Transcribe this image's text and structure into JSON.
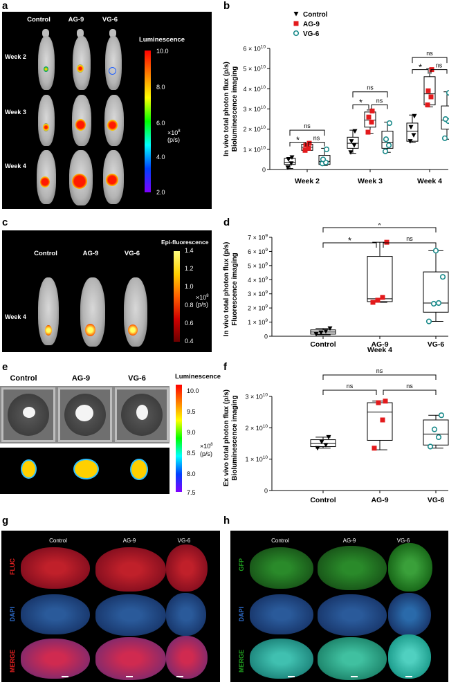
{
  "panel_letters": [
    "a",
    "b",
    "c",
    "d",
    "e",
    "f",
    "g",
    "h"
  ],
  "panel_a": {
    "columns": [
      "Control",
      "AG-9",
      "VG-6"
    ],
    "rows": [
      "Week 2",
      "Week 3",
      "Week 4"
    ],
    "colorbar_title": "Luminescence",
    "colorbar_ticks": [
      "10.0",
      "8.0",
      "6.0",
      "4.0",
      "2.0"
    ],
    "unit_line1": "×10",
    "unit_exp": "8",
    "unit_line2": "(p/s)"
  },
  "panel_c": {
    "columns": [
      "Control",
      "AG-9",
      "VG-6"
    ],
    "row": "Week 4",
    "colorbar_title": "Epi-fluorescence",
    "colorbar_ticks": [
      "1.4",
      "1.2",
      "1.0",
      "0.8",
      "0.6",
      "0.4"
    ],
    "unit_line1": "×10",
    "unit_exp": "8",
    "unit_line2": "(p/s)"
  },
  "panel_e": {
    "columns": [
      "Control",
      "AG-9",
      "VG-6"
    ],
    "colorbar_title": "Luminescence",
    "colorbar_ticks": [
      "10.0",
      "9.5",
      "9.0",
      "8.5",
      "8.0",
      "7.5"
    ],
    "unit_line1": "×10",
    "unit_exp": "8",
    "unit_line2": "(p/s)"
  },
  "panel_g": {
    "columns": [
      "Control",
      "AG-9",
      "VG-6"
    ],
    "rows": [
      "FLUC",
      "DAPI",
      "MERGE"
    ]
  },
  "panel_h": {
    "columns": [
      "Control",
      "AG-9",
      "VG-6"
    ],
    "rows": [
      "GFP",
      "DAPI",
      "MERGE"
    ]
  },
  "colors": {
    "control": "#000000",
    "ag9": "#e31a1c",
    "vg6": "#1a8a8a"
  },
  "chart_data": [
    {
      "panel": "b",
      "type": "box",
      "ylabel_line1": "In vivo total photon flux (p/s)",
      "ylabel_line2": "Bioluminescence imaging",
      "categories": [
        "Week 2",
        "Week 3",
        "Week 4"
      ],
      "ylim": [
        0,
        60000000000.0
      ],
      "yticks": [
        {
          "m": "0",
          "e": ""
        },
        {
          "m": "1 × 10",
          "e": "10"
        },
        {
          "m": "2 × 10",
          "e": "10"
        },
        {
          "m": "3 × 10",
          "e": "10"
        },
        {
          "m": "4 × 10",
          "e": "10"
        },
        {
          "m": "5 × 10",
          "e": "10"
        },
        {
          "m": "6 × 10",
          "e": "10"
        }
      ],
      "legend": [
        "Control",
        "AG-9",
        "VG-6"
      ],
      "series": [
        {
          "name": "Control",
          "marker": "triangle",
          "groups": [
            {
              "box": [
                2500000000.0,
                3500000000.0,
                5500000000.0
              ],
              "whisk": [
                500000000.0,
                6000000000.0
              ],
              "points": [
                1000000000.0,
                3000000000.0,
                5000000000.0,
                6000000000.0
              ]
            },
            {
              "box": [
                10500000000.0,
                13000000000.0,
                16000000000.0
              ],
              "whisk": [
                8000000000.0,
                19500000000.0
              ],
              "points": [
                8500000000.0,
                12000000000.0,
                14000000000.0,
                19000000000.0
              ]
            },
            {
              "box": [
                14000000000.0,
                19000000000.0,
                23000000000.0
              ],
              "whisk": [
                13500000000.0,
                27000000000.0
              ],
              "points": [
                14000000000.0,
                17000000000.0,
                21000000000.0,
                26500000000.0
              ]
            }
          ]
        },
        {
          "name": "AG-9",
          "marker": "square",
          "groups": [
            {
              "box": [
                9500000000.0,
                11000000000.0,
                12500000000.0
              ],
              "whisk": [
                9500000000.0,
                13000000000.0
              ],
              "points": [
                9500000000.0,
                10500000000.0,
                12000000000.0,
                13000000000.0
              ]
            },
            {
              "box": [
                21000000000.0,
                24500000000.0,
                28500000000.0
              ],
              "whisk": [
                18000000000.0,
                29500000000.0
              ],
              "points": [
                18500000000.0,
                23500000000.0,
                26000000000.0,
                29000000000.0
              ]
            },
            {
              "box": [
                32000000000.0,
                37500000000.0,
                46000000000.0
              ],
              "whisk": [
                31000000000.0,
                50000000000.0
              ],
              "points": [
                32000000000.0,
                36000000000.0,
                39000000000.0,
                49500000000.0
              ]
            }
          ]
        },
        {
          "name": "VG-6",
          "marker": "circle",
          "groups": [
            {
              "box": [
                2500000000.0,
                4000000000.0,
                7000000000.0
              ],
              "whisk": [
                2000000000.0,
                10500000000.0
              ],
              "points": [
                3000000000.0,
                3500000000.0,
                5000000000.0,
                10000000000.0
              ]
            },
            {
              "box": [
                10500000000.0,
                13500000000.0,
                19000000000.0
              ],
              "whisk": [
                8500000000.0,
                23500000000.0
              ],
              "points": [
                9000000000.0,
                12000000000.0,
                15000000000.0,
                23000000000.0
              ]
            },
            {
              "box": [
                20000000000.0,
                24500000000.0,
                31500000000.0
              ],
              "whisk": [
                15000000000.0,
                38500000000.0
              ],
              "points": [
                15500000000.0,
                24000000000.0,
                25000000000.0,
                38000000000.0
              ]
            }
          ]
        }
      ],
      "annotations": [
        {
          "label": "ns",
          "week": 0,
          "pair": "control-vg6"
        },
        {
          "label": "*",
          "week": 0,
          "pair": "control-ag9"
        },
        {
          "label": "ns",
          "week": 0,
          "pair": "ag9-vg6"
        },
        {
          "label": "ns",
          "week": 1,
          "pair": "control-vg6"
        },
        {
          "label": "*",
          "week": 1,
          "pair": "control-ag9"
        },
        {
          "label": "ns",
          "week": 1,
          "pair": "ag9-vg6"
        },
        {
          "label": "ns",
          "week": 2,
          "pair": "control-vg6"
        },
        {
          "label": "*",
          "week": 2,
          "pair": "control-ag9"
        },
        {
          "label": "ns",
          "week": 2,
          "pair": "ag9-vg6"
        }
      ]
    },
    {
      "panel": "d",
      "type": "box",
      "ylabel_line1": "In vivo total photon flux (p/s)",
      "ylabel_line2": "Fluorescence imaging",
      "xlabel": "Week 4",
      "categories": [
        "Control",
        "AG-9",
        "VG-6"
      ],
      "ylim": [
        0,
        7000000000.0
      ],
      "yticks": [
        {
          "m": "0",
          "e": ""
        },
        {
          "m": "1 × 10",
          "e": "9"
        },
        {
          "m": "2 × 10",
          "e": "9"
        },
        {
          "m": "3 × 10",
          "e": "9"
        },
        {
          "m": "4 × 10",
          "e": "9"
        },
        {
          "m": "5 × 10",
          "e": "9"
        },
        {
          "m": "6 × 10",
          "e": "9"
        },
        {
          "m": "7 × 10",
          "e": "9"
        }
      ],
      "groups": [
        {
          "name": "Control",
          "marker": "triangle",
          "box": [
            150000000.0,
            300000000.0,
            450000000.0
          ],
          "whisk": [
            100000000.0,
            550000000.0
          ],
          "points": [
            150000000.0,
            250000000.0,
            350000000.0,
            550000000.0
          ]
        },
        {
          "name": "AG-9",
          "marker": "square",
          "box": [
            2450000000.0,
            2650000000.0,
            5650000000.0
          ],
          "whisk": [
            2400000000.0,
            6650000000.0
          ],
          "points": [
            2400000000.0,
            2550000000.0,
            2750000000.0,
            6650000000.0
          ]
        },
        {
          "name": "VG-6",
          "marker": "circle",
          "box": [
            1700000000.0,
            2350000000.0,
            4550000000.0
          ],
          "whisk": [
            1050000000.0,
            6050000000.0
          ],
          "points": [
            1050000000.0,
            2300000000.0,
            2350000000.0,
            4200000000.0,
            6050000000.0
          ]
        }
      ],
      "annotations": [
        {
          "label": "*",
          "pair": "control-vg6"
        },
        {
          "label": "*",
          "pair": "control-ag9"
        },
        {
          "label": "ns",
          "pair": "ag9-vg6"
        }
      ]
    },
    {
      "panel": "f",
      "type": "box",
      "ylabel_line1": "Ex vivo total photon flux (p/s)",
      "ylabel_line2": "Bioluminescence imaging",
      "categories": [
        "Control",
        "AG-9",
        "VG-6"
      ],
      "ylim": [
        0,
        30000000000.0
      ],
      "yticks": [
        {
          "m": "0",
          "e": ""
        },
        {
          "m": "1 × 10",
          "e": "10"
        },
        {
          "m": "2 × 10",
          "e": "10"
        },
        {
          "m": "3 × 10",
          "e": "10"
        }
      ],
      "groups": [
        {
          "name": "Control",
          "marker": "triangle",
          "box": [
            14000000000.0,
            15000000000.0,
            16200000000.0
          ],
          "whisk": [
            13500000000.0,
            17000000000.0
          ],
          "points": [
            13500000000.0,
            14500000000.0,
            15500000000.0,
            17000000000.0
          ]
        },
        {
          "name": "AG-9",
          "marker": "square",
          "box": [
            16000000000.0,
            25000000000.0,
            28000000000.0
          ],
          "whisk": [
            13000000000.0,
            28500000000.0
          ],
          "points": [
            13500000000.0,
            22500000000.0,
            28000000000.0,
            28500000000.0
          ]
        },
        {
          "name": "VG-6",
          "marker": "circle",
          "box": [
            14500000000.0,
            18000000000.0,
            22500000000.0
          ],
          "whisk": [
            13500000000.0,
            24000000000.0
          ],
          "points": [
            14000000000.0,
            17000000000.0,
            19500000000.0,
            24000000000.0
          ]
        }
      ],
      "annotations": [
        {
          "label": "ns",
          "pair": "control-vg6"
        },
        {
          "label": "ns",
          "pair": "control-ag9"
        },
        {
          "label": "ns",
          "pair": "ag9-vg6"
        }
      ]
    }
  ]
}
